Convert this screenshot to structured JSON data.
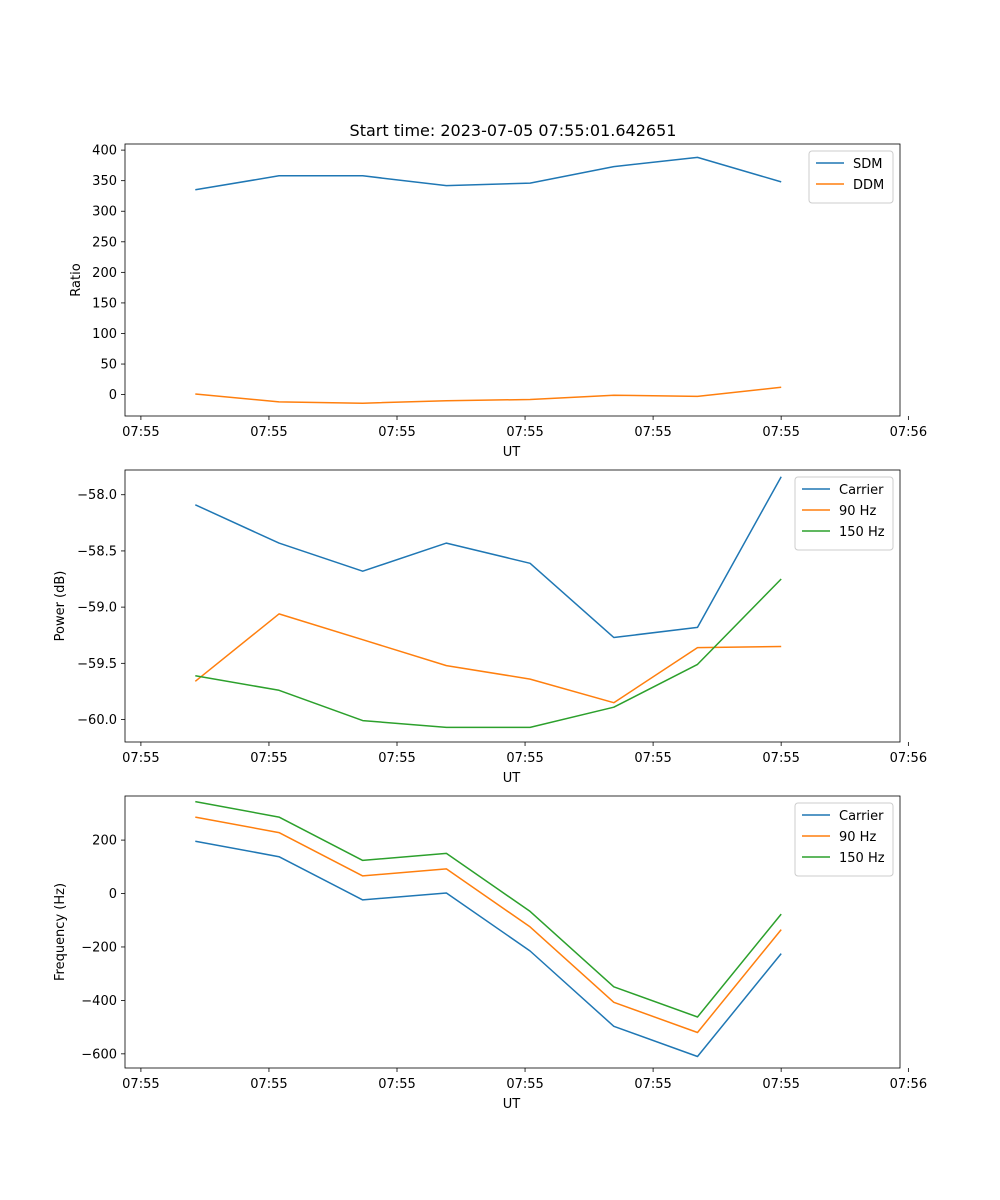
{
  "title": "Start time: 2023-07-05 07:55:01.642651",
  "colors": {
    "series1": "#1f77b4",
    "series2": "#ff7f0e",
    "series3": "#2ca02c"
  },
  "chart_data": [
    {
      "type": "line",
      "ylabel": "Ratio",
      "xlabel": "UT",
      "x": [
        1,
        2,
        3,
        4,
        5,
        6,
        7,
        8
      ],
      "xlim": [
        0.16,
        9.42
      ],
      "xtick_positions": [
        0.35,
        1.88,
        3.41,
        4.94,
        6.47,
        8.0,
        9.52
      ],
      "xtick_labels": [
        "07:55",
        "07:55",
        "07:55",
        "07:55",
        "07:55",
        "07:55",
        "07:56"
      ],
      "ylim": [
        -35,
        410
      ],
      "yticks": [
        0,
        50,
        100,
        150,
        200,
        250,
        300,
        350,
        400
      ],
      "ytick_labels": [
        "0",
        "50",
        "100",
        "150",
        "200",
        "250",
        "300",
        "350",
        "400"
      ],
      "legend_position": "top-right",
      "series": [
        {
          "name": "SDM",
          "values": [
            335,
            358,
            358,
            342,
            346,
            373,
            388,
            348
          ]
        },
        {
          "name": "DDM",
          "values": [
            1,
            -12,
            -14,
            -10,
            -8,
            -1,
            -3,
            12
          ]
        }
      ]
    },
    {
      "type": "line",
      "ylabel": "Power (dB)",
      "xlabel": "UT",
      "x": [
        1,
        2,
        3,
        4,
        5,
        6,
        7,
        8
      ],
      "xlim": [
        0.16,
        9.42
      ],
      "xtick_positions": [
        0.35,
        1.88,
        3.41,
        4.94,
        6.47,
        8.0,
        9.52
      ],
      "xtick_labels": [
        "07:55",
        "07:55",
        "07:55",
        "07:55",
        "07:55",
        "07:55",
        "07:56"
      ],
      "ylim": [
        -60.2,
        -57.78
      ],
      "yticks": [
        -60.0,
        -59.5,
        -59.0,
        -58.5,
        -58.0
      ],
      "ytick_labels": [
        "−60.0",
        "−59.5",
        "−59.0",
        "−58.5",
        "−58.0"
      ],
      "legend_position": "top-right",
      "series": [
        {
          "name": "Carrier",
          "values": [
            -58.09,
            -58.43,
            -58.68,
            -58.43,
            -58.61,
            -59.27,
            -59.18,
            -57.84
          ]
        },
        {
          "name": "90 Hz",
          "values": [
            -59.66,
            -59.06,
            -59.29,
            -59.52,
            -59.64,
            -59.85,
            -59.36,
            -59.35
          ]
        },
        {
          "name": "150 Hz",
          "values": [
            -59.61,
            -59.74,
            -60.01,
            -60.07,
            -60.07,
            -59.89,
            -59.51,
            -58.75
          ]
        }
      ]
    },
    {
      "type": "line",
      "ylabel": "Frequency (Hz)",
      "xlabel": "UT",
      "x": [
        1,
        2,
        3,
        4,
        5,
        6,
        7,
        8
      ],
      "xlim": [
        0.16,
        9.42
      ],
      "xtick_positions": [
        0.35,
        1.88,
        3.41,
        4.94,
        6.47,
        8.0,
        9.52
      ],
      "xtick_labels": [
        "07:55",
        "07:55",
        "07:55",
        "07:55",
        "07:55",
        "07:55",
        "07:56"
      ],
      "ylim": [
        -653,
        365
      ],
      "yticks": [
        -600,
        -400,
        -200,
        0,
        200
      ],
      "ytick_labels": [
        "−600",
        "−400",
        "−200",
        "0",
        "200"
      ],
      "legend_position": "top-right",
      "series": [
        {
          "name": "Carrier",
          "values": [
            196,
            138,
            -24,
            2,
            -215,
            -497,
            -610,
            -225
          ]
        },
        {
          "name": "90 Hz",
          "values": [
            286,
            228,
            66,
            92,
            -125,
            -407,
            -520,
            -135
          ]
        },
        {
          "name": "150 Hz",
          "values": [
            344,
            286,
            124,
            150,
            -67,
            -349,
            -462,
            -77
          ]
        }
      ]
    }
  ]
}
